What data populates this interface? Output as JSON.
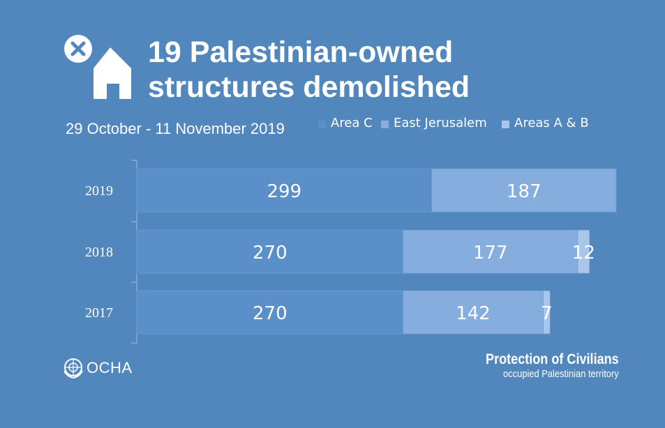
{
  "title": {
    "line1": "19 Palestinian-owned",
    "line2": "structures demolished"
  },
  "subtitle": "29 October - 11 November 2019",
  "icon": "house-demolished-icon",
  "logo": {
    "icon": "un-emblem-icon",
    "text": "OCHA"
  },
  "footer": {
    "title": "Protection of Civilians",
    "subtitle": "occupied Palestinian territory"
  },
  "colors": {
    "background": "#5287bd",
    "area_c": "#5a8fc9",
    "east_jerusalem": "#85aede",
    "areas_ab": "#a9c6ea"
  },
  "chart_data": {
    "type": "bar",
    "orientation": "horizontal",
    "stacked": true,
    "categories": [
      "2019",
      "2018",
      "2017"
    ],
    "series": [
      {
        "name": "Area C",
        "values": [
          299,
          270,
          270
        ]
      },
      {
        "name": "East Jerusalem",
        "values": [
          187,
          177,
          142
        ]
      },
      {
        "name": "Areas A & B",
        "values": [
          0,
          12,
          7
        ]
      }
    ],
    "data_labels": [
      [
        "299",
        "187",
        ""
      ],
      [
        "270",
        "177",
        "12"
      ],
      [
        "270",
        "142",
        "7"
      ]
    ],
    "xlim": [
      0,
      486
    ],
    "legend": [
      "Area C",
      "East Jerusalem",
      "Areas A & B"
    ],
    "legend_position": "top-right"
  }
}
